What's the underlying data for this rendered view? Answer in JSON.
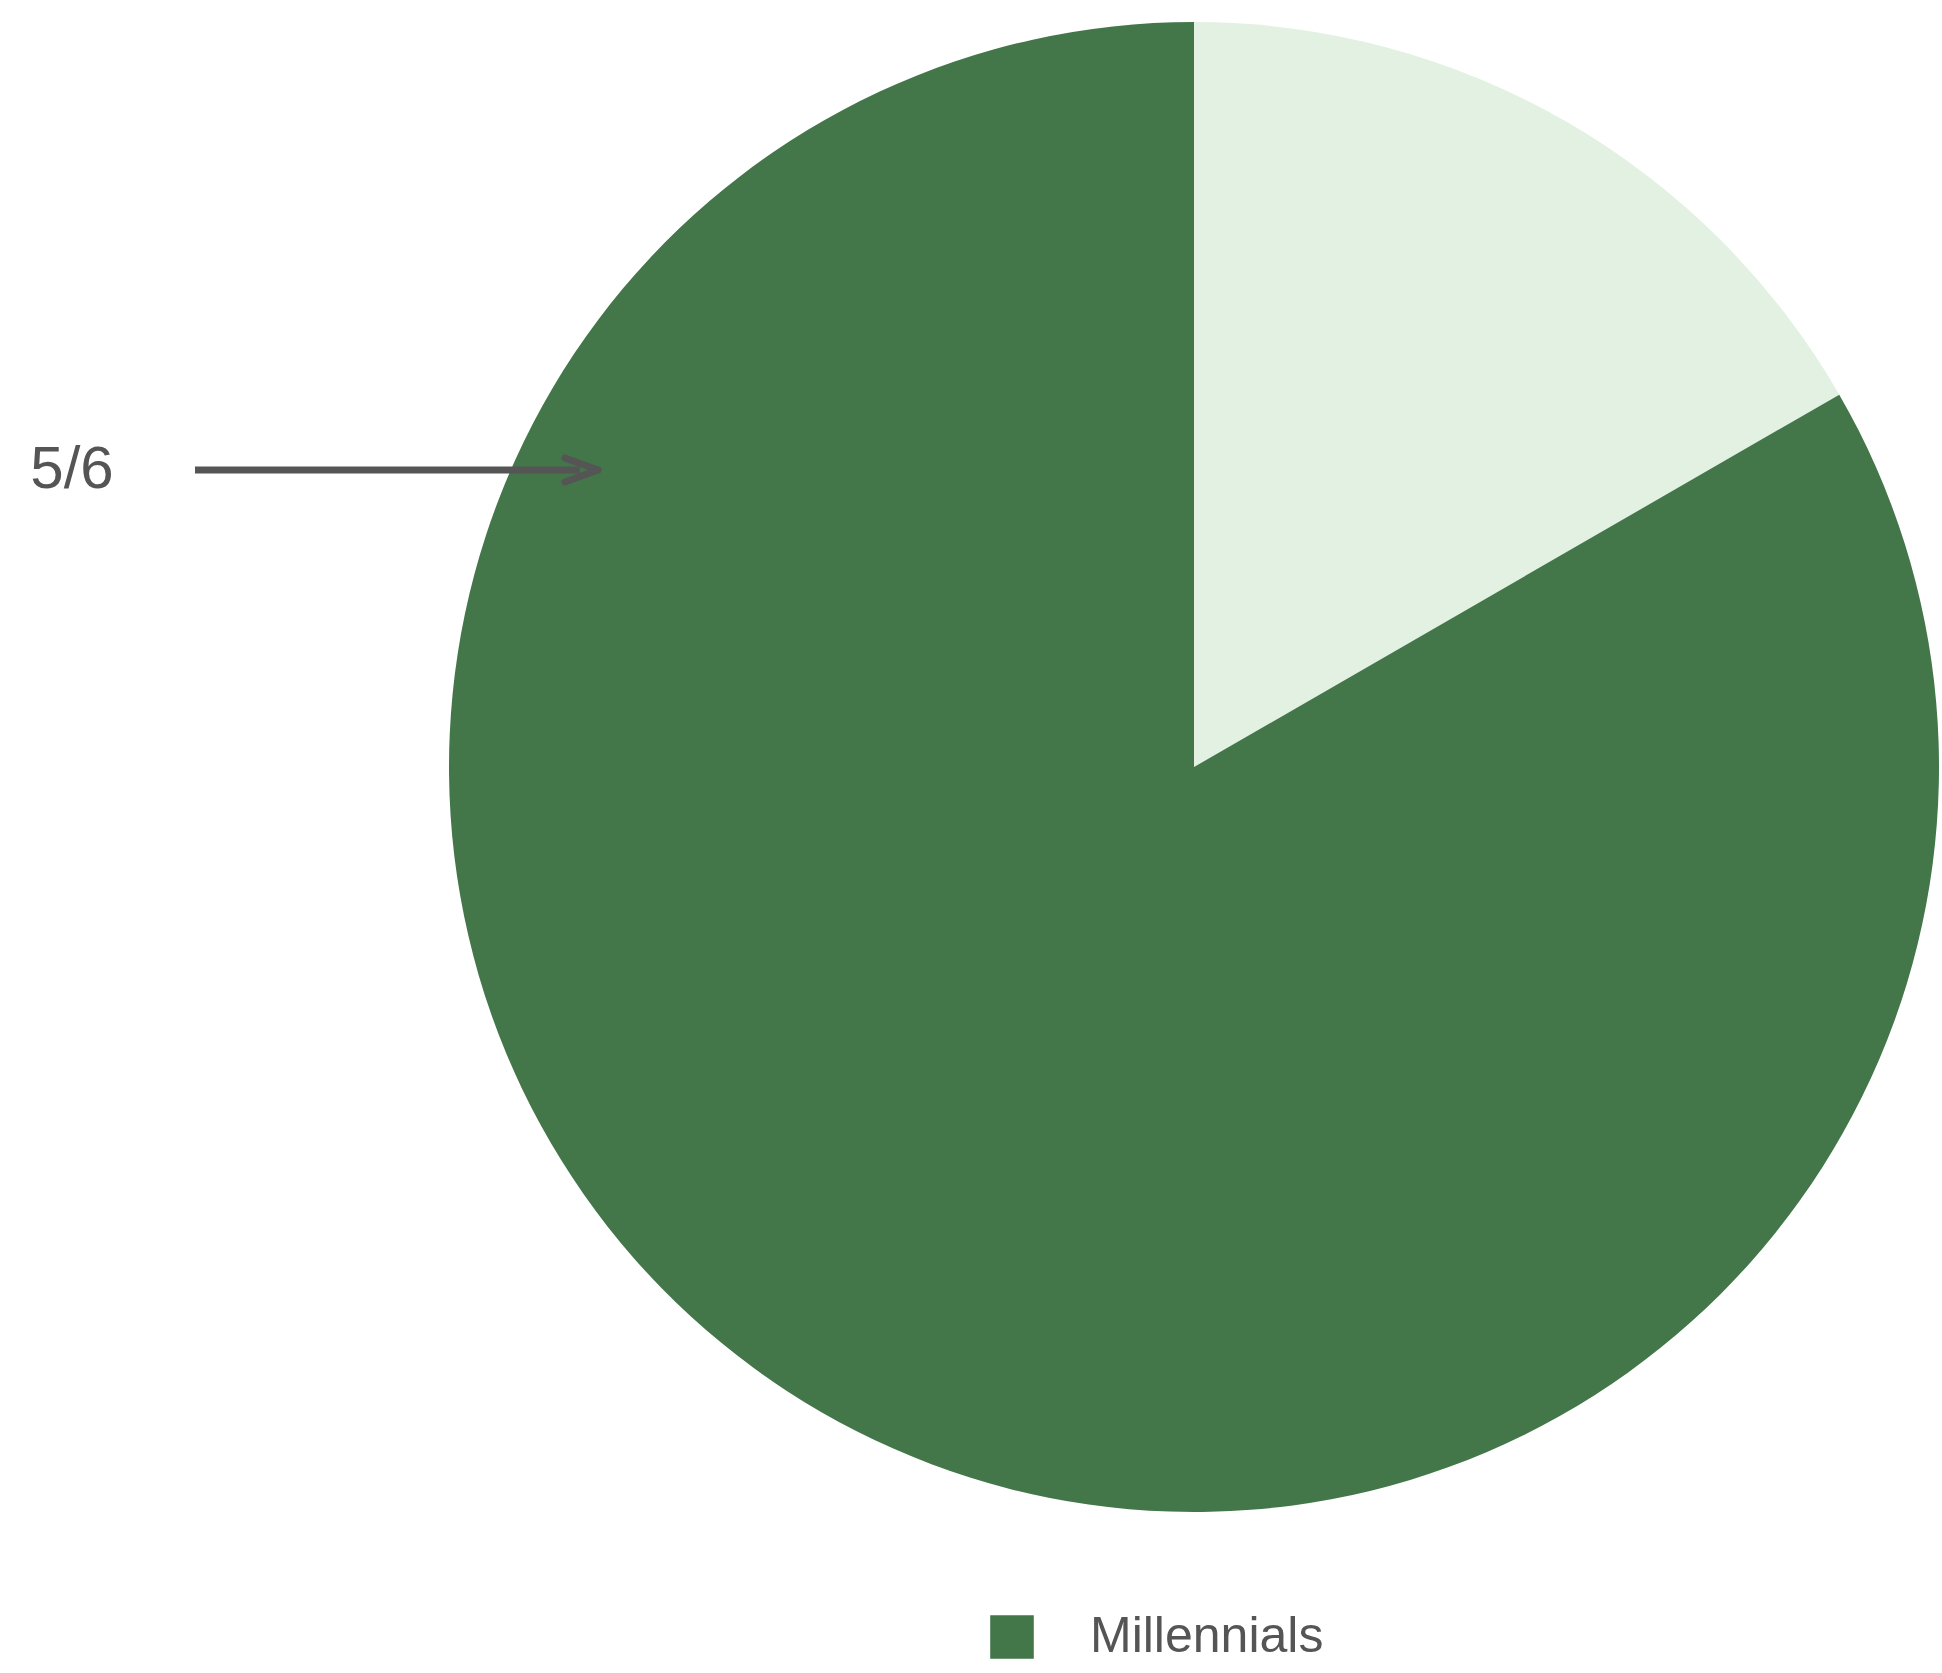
{
  "chart_data": {
    "type": "pie",
    "categories": [
      null,
      "Millennials"
    ],
    "values": [
      16.67,
      83.33
    ],
    "colors": [
      "#e3f1e2",
      "#43774a"
    ],
    "annotations": [
      "5/6"
    ],
    "legend": "bottom"
  }
}
